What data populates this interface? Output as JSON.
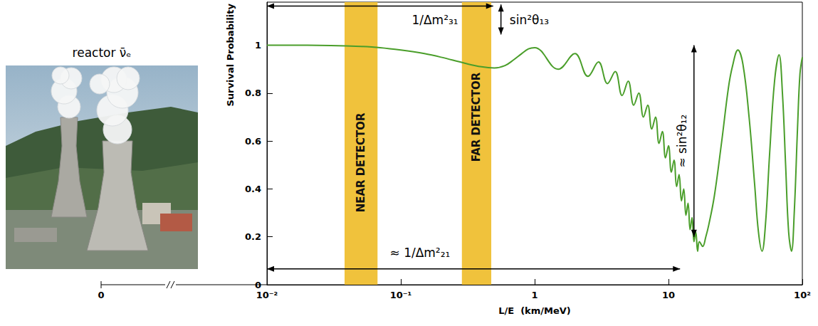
{
  "chart_data": {
    "type": "line",
    "x_label": "L/E  (km/MeV)",
    "y_label": "Survival Probability",
    "log": "x",
    "grid": false,
    "xlim": [
      0.01,
      100
    ],
    "xticks": [
      {
        "value": 0.01,
        "label": "10⁻²"
      },
      {
        "value": 0.1,
        "label": "10⁻¹"
      },
      1,
      10,
      {
        "value": 100,
        "label": "10²"
      }
    ],
    "ylim": [
      0,
      1.18
    ],
    "yticks": [
      0,
      0.2,
      0.4,
      0.6,
      0.8,
      1
    ],
    "color": "#4a9e2a",
    "x": [
      0.01,
      0.02,
      0.03,
      0.05,
      0.07,
      0.1,
      0.15,
      0.2,
      0.3,
      0.4,
      0.5,
      0.6,
      0.7,
      0.8,
      0.9,
      1,
      1.5,
      2,
      2.5,
      3,
      3.5,
      4,
      4.5,
      5,
      5.5,
      6,
      6.5,
      7,
      7.5,
      8,
      8.5,
      9,
      9.5,
      10,
      10.5,
      11,
      11.5,
      12,
      12.5,
      13,
      13.5,
      14,
      14.5,
      15,
      15.5,
      16,
      16.5,
      17,
      18,
      19,
      20,
      22,
      25,
      28,
      30,
      33,
      36,
      40,
      44,
      47,
      50,
      53,
      57,
      62,
      67,
      71,
      75,
      79,
      83,
      87,
      92,
      96,
      100
    ],
    "values": [
      1,
      1,
      0.999,
      0.995,
      0.99,
      0.98,
      0.965,
      0.95,
      0.925,
      0.91,
      0.905,
      0.915,
      0.94,
      0.965,
      0.985,
      0.99,
      0.9,
      0.965,
      0.87,
      0.93,
      0.84,
      0.89,
      0.79,
      0.85,
      0.75,
      0.8,
      0.7,
      0.75,
      0.65,
      0.7,
      0.59,
      0.64,
      0.53,
      0.58,
      0.47,
      0.52,
      0.41,
      0.46,
      0.35,
      0.4,
      0.29,
      0.34,
      0.23,
      0.28,
      0.18,
      0.22,
      0.14,
      0.18,
      0.16,
      0.2,
      0.25,
      0.37,
      0.6,
      0.82,
      0.91,
      0.98,
      0.92,
      0.7,
      0.42,
      0.22,
      0.14,
      0.25,
      0.55,
      0.85,
      0.96,
      0.8,
      0.5,
      0.22,
      0.14,
      0.3,
      0.65,
      0.88,
      0.95
    ],
    "bands": [
      {
        "label": "NEAR DETECTOR",
        "x": [
          0.038,
          0.067
        ],
        "label_y": 0.51,
        "color": "#f0c23c"
      },
      {
        "label": "FAR DETECTOR",
        "x": [
          0.286,
          0.474
        ],
        "label_y": 0.7,
        "color": "#f0c23c"
      }
    ],
    "annotations": [
      {
        "text": "1/Δm²₃₁",
        "from": [
          0.01,
          1.164
        ],
        "to": [
          0.49,
          1.164
        ],
        "text_at": [
          0.18,
          1.105
        ]
      },
      {
        "text": "sin²θ₁₃",
        "from": [
          0.56,
          1.17
        ],
        "to": [
          0.56,
          1.045
        ],
        "text_at": [
          0.65,
          1.105
        ]
      },
      {
        "text": "≈ sin²θ₁₂",
        "from": [
          15.5,
          1.0
        ],
        "to": [
          15.5,
          0.2
        ],
        "text_at": [
          12.6,
          0.6
        ]
      },
      {
        "text": "≈ 1/Δm²₂₁",
        "from": [
          0.01,
          0.066
        ],
        "to": [
          12.2,
          0.066
        ],
        "text_at": [
          0.139,
          0.134
        ]
      }
    ],
    "x_origin_label": "0",
    "source_label": "reactor ν̄ₑ"
  }
}
